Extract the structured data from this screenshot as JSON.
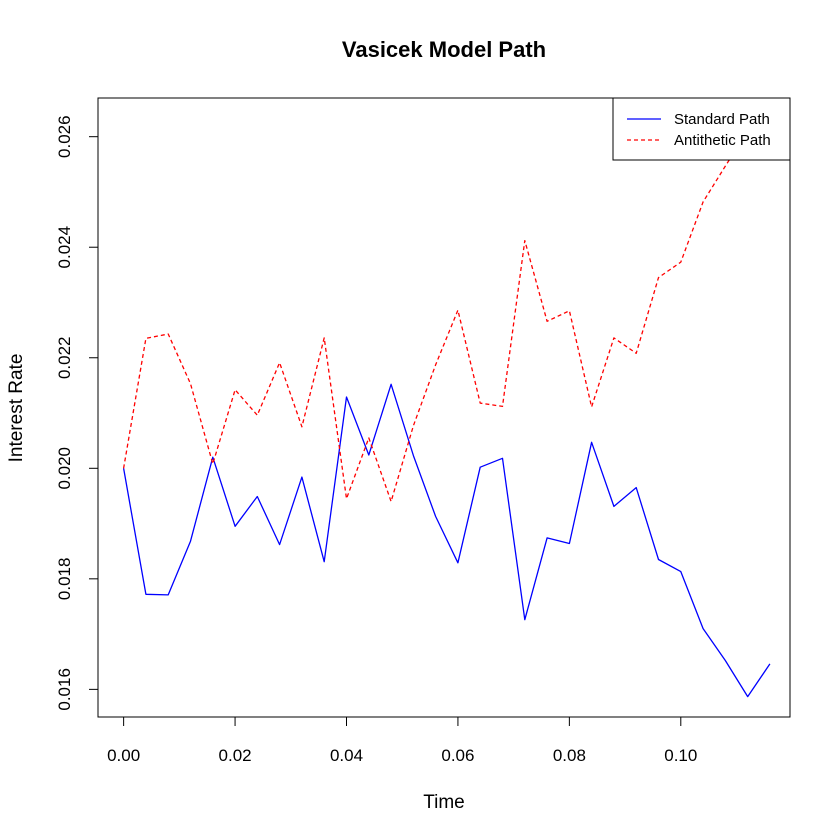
{
  "chart_data": {
    "type": "line",
    "title": "Vasicek Model Path",
    "xlabel": "Time",
    "ylabel": "Interest Rate",
    "xlim": [
      -0.0046,
      0.1196
    ],
    "ylim": [
      0.0155,
      0.0267
    ],
    "x_ticks": [
      0.0,
      0.02,
      0.04,
      0.06,
      0.08,
      0.1
    ],
    "x_tick_labels": [
      "0.00",
      "0.02",
      "0.04",
      "0.06",
      "0.08",
      "0.10"
    ],
    "y_ticks": [
      0.016,
      0.018,
      0.02,
      0.022,
      0.024,
      0.026
    ],
    "y_tick_labels": [
      "0.016",
      "0.018",
      "0.020",
      "0.022",
      "0.024",
      "0.026"
    ],
    "grid": false,
    "legend_position": "top-right",
    "x": [
      0.0,
      0.004,
      0.008,
      0.012,
      0.016,
      0.02,
      0.024,
      0.028,
      0.032,
      0.036,
      0.04,
      0.044,
      0.048,
      0.052,
      0.056,
      0.06,
      0.064,
      0.068,
      0.072,
      0.076,
      0.08,
      0.084,
      0.088,
      0.092,
      0.096,
      0.1,
      0.104,
      0.108,
      0.112,
      0.116
    ],
    "series": [
      {
        "name": "Standard Path",
        "color": "#0000ff",
        "line_style": "solid",
        "values": [
          0.02,
          0.01772,
          0.01771,
          0.01868,
          0.0202,
          0.01895,
          0.01949,
          0.01862,
          0.01984,
          0.01831,
          0.02129,
          0.02024,
          0.02152,
          0.02023,
          0.01913,
          0.01829,
          0.02002,
          0.02018,
          0.01726,
          0.01874,
          0.01864,
          0.02047,
          0.01931,
          0.01965,
          0.01835,
          0.01813,
          0.0171,
          0.01652,
          0.01587,
          0.01646
        ]
      },
      {
        "name": "Antithetic Path",
        "color": "#ff0000",
        "line_style": "dashed",
        "values": [
          0.02,
          0.02235,
          0.02243,
          0.02153,
          0.02008,
          0.02142,
          0.02096,
          0.02191,
          0.02075,
          0.02236,
          0.01945,
          0.02055,
          0.0194,
          0.02077,
          0.02187,
          0.02286,
          0.02118,
          0.02112,
          0.02412,
          0.02266,
          0.02285,
          0.02111,
          0.02236,
          0.02208,
          0.02345,
          0.02373,
          0.02482,
          0.02547,
          0.0261,
          0.0268
        ]
      }
    ]
  }
}
